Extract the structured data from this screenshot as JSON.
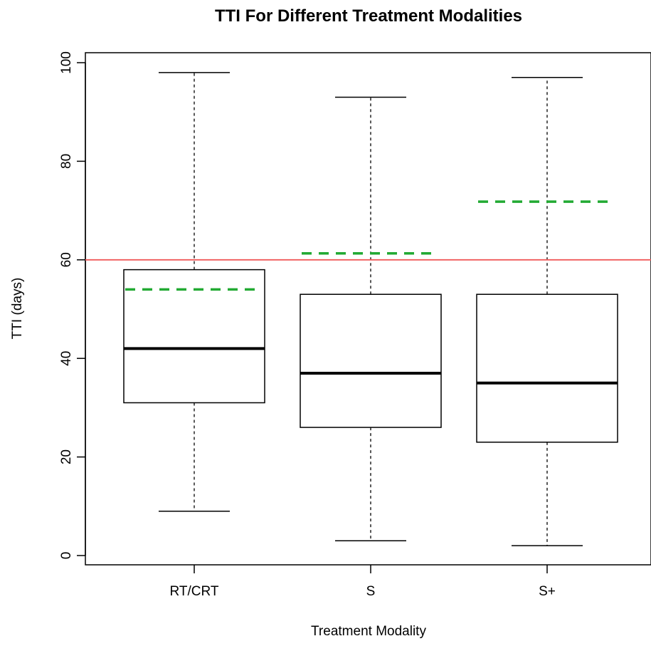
{
  "chart_data": {
    "type": "box",
    "title": "TTI For Different Treatment Modalities",
    "xlabel": "Treatment Modality",
    "ylabel": "TTI (days)",
    "ylim": [
      0,
      100
    ],
    "yticks": [
      0,
      20,
      40,
      60,
      80,
      100
    ],
    "categories": [
      "RT/CRT",
      "S",
      "S+"
    ],
    "boxes": [
      {
        "category": "RT/CRT",
        "whisker_low": 9,
        "q1": 31,
        "median": 42,
        "q3": 58,
        "whisker_high": 98,
        "mean": 54
      },
      {
        "category": "S",
        "whisker_low": 3,
        "q1": 26,
        "median": 37,
        "q3": 53,
        "whisker_high": 93,
        "mean": 61.3
      },
      {
        "category": "S+",
        "whisker_low": 2,
        "q1": 23,
        "median": 35,
        "q3": 53,
        "whisker_high": 97,
        "mean": 71.8
      }
    ],
    "reference_line": {
      "y": 60,
      "color": "#f05a5a"
    },
    "mean_line_color": "#22aa33",
    "grid": false
  }
}
